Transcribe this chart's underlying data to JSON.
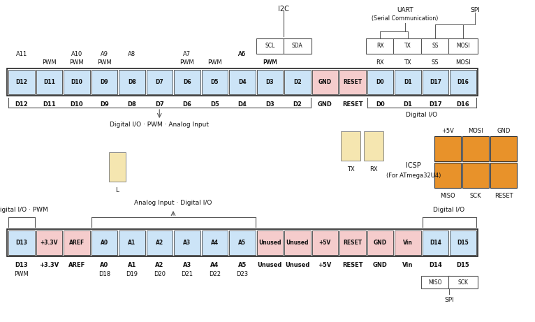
{
  "fig_w": 7.66,
  "fig_h": 4.61,
  "bg": "#ffffff",
  "top_pins": [
    "D12",
    "D11",
    "D10",
    "D9",
    "D8",
    "D7",
    "D6",
    "D5",
    "D4",
    "D3",
    "D2",
    "GND",
    "RESET",
    "D0",
    "D1",
    "D17",
    "D16"
  ],
  "top_colors": [
    "#cce4f7",
    "#cce4f7",
    "#cce4f7",
    "#cce4f7",
    "#cce4f7",
    "#cce4f7",
    "#cce4f7",
    "#cce4f7",
    "#cce4f7",
    "#cce4f7",
    "#cce4f7",
    "#f5cccc",
    "#f5cccc",
    "#cce4f7",
    "#cce4f7",
    "#cce4f7",
    "#cce4f7"
  ],
  "bot_pins": [
    "D13",
    "+3.3V",
    "AREF",
    "A0",
    "A1",
    "A2",
    "A3",
    "A4",
    "A5",
    "Unused",
    "Unused",
    "+5V",
    "RESET",
    "GND",
    "Vin",
    "D14",
    "D15"
  ],
  "bot_colors": [
    "#cce4f7",
    "#f5cccc",
    "#f5cccc",
    "#cce4f7",
    "#cce4f7",
    "#cce4f7",
    "#cce4f7",
    "#cce4f7",
    "#cce4f7",
    "#f5cccc",
    "#f5cccc",
    "#f5cccc",
    "#f5cccc",
    "#f5cccc",
    "#f5cccc",
    "#cce4f7",
    "#cce4f7"
  ],
  "top_above": {
    "D12": [
      "A11",
      ""
    ],
    "D11": [
      "",
      "PWM"
    ],
    "D10": [
      "A10",
      "PWM"
    ],
    "D9": [
      "A9",
      "PWM"
    ],
    "D8": [
      "A8",
      ""
    ],
    "D7": [
      "",
      ""
    ],
    "D6": [
      "A7",
      "PWM"
    ],
    "D5": [
      "",
      "PWM"
    ],
    "D4": [
      "A6",
      ""
    ],
    "D3": [
      "",
      "PWM"
    ],
    "D2": [
      "",
      ""
    ],
    "GND": [
      "",
      ""
    ],
    "RESET": [
      "",
      ""
    ],
    "D0": [
      "",
      "RX"
    ],
    "D1": [
      "",
      "TX"
    ],
    "D17": [
      "",
      "SS"
    ],
    "D16": [
      "",
      "MOSI"
    ]
  },
  "bot_below": {
    "D13": "PWM",
    "A0": "D18",
    "A1": "D19",
    "A2": "D20",
    "A3": "D21",
    "A4": "D22",
    "A5": "D23"
  },
  "icsp_color": "#e8922a",
  "icsp_top_labels": [
    "+5V",
    "MOSI",
    "GND"
  ],
  "icsp_bot_labels": [
    "MISO",
    "SCK",
    "RESET"
  ],
  "led_color": "#f5e6b0",
  "txrx_color": "#f5e6b0"
}
